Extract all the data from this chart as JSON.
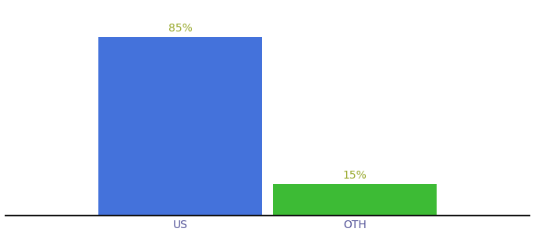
{
  "categories": [
    "US",
    "OTH"
  ],
  "values": [
    85,
    15
  ],
  "bar_colors": [
    "#4472db",
    "#3dbb35"
  ],
  "label_colors": [
    "#9aaa30",
    "#9aaa30"
  ],
  "label_texts": [
    "85%",
    "15%"
  ],
  "background_color": "#ffffff",
  "ylim": [
    0,
    100
  ],
  "bar_width": 0.28,
  "tick_fontsize": 10,
  "label_fontsize": 10,
  "spine_color": "#111111"
}
